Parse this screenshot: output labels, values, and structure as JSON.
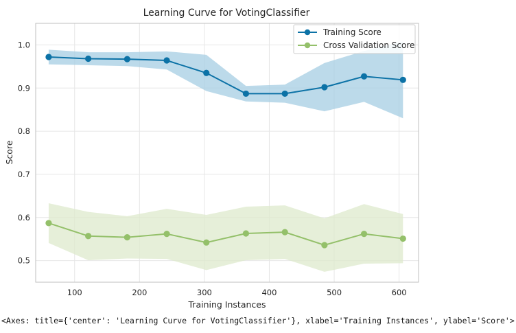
{
  "chart_data": {
    "type": "line",
    "title": "Learning Curve for VotingClassifier",
    "xlabel": "Training Instances",
    "ylabel": "Score",
    "xlim": [
      40,
      630
    ],
    "ylim": [
      0.45,
      1.05
    ],
    "xticks": [
      100,
      200,
      300,
      400,
      500,
      600
    ],
    "yticks": [
      0.5,
      0.6,
      0.7,
      0.8,
      0.9,
      1.0
    ],
    "grid": true,
    "legend_position": "top-right",
    "x": [
      60,
      121,
      181,
      242,
      303,
      364,
      424,
      485,
      546,
      606
    ],
    "series": [
      {
        "name": "Training Score",
        "color": "#0c72a6",
        "band_color": "#a6cde3",
        "values": [
          0.972,
          0.968,
          0.967,
          0.964,
          0.935,
          0.887,
          0.887,
          0.902,
          0.927,
          0.919
        ],
        "lower": [
          0.955,
          0.953,
          0.951,
          0.943,
          0.893,
          0.869,
          0.866,
          0.846,
          0.868,
          0.83
        ],
        "upper": [
          0.989,
          0.983,
          0.983,
          0.985,
          0.977,
          0.905,
          0.908,
          0.958,
          0.986,
          1.008
        ]
      },
      {
        "name": "Cross Validation Score",
        "color": "#94c06a",
        "band_color": "#dde9cc",
        "values": [
          0.587,
          0.557,
          0.554,
          0.562,
          0.542,
          0.563,
          0.566,
          0.536,
          0.562,
          0.551
        ],
        "lower": [
          0.541,
          0.501,
          0.505,
          0.504,
          0.478,
          0.501,
          0.504,
          0.474,
          0.493,
          0.494
        ],
        "upper": [
          0.633,
          0.613,
          0.603,
          0.62,
          0.606,
          0.625,
          0.628,
          0.598,
          0.631,
          0.608
        ]
      }
    ]
  },
  "output_text": "<Axes: title={'center': 'Learning Curve for VotingClassifier'}, xlabel='Training Instances', ylabel='Score'>"
}
